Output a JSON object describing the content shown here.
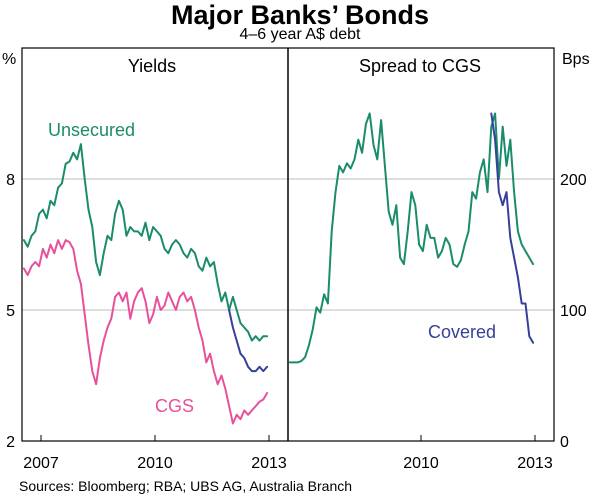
{
  "title": "Major Banks’ Bonds",
  "subtitle": "4–6 year A$ debt",
  "source": "Sources: Bloomberg; RBA; UBS AG, Australia Branch",
  "colors": {
    "green": "#1a8c6c",
    "pink": "#e8509b",
    "blue": "#34409a",
    "grid": "#bdbdbd"
  },
  "chart_data": [
    {
      "type": "line",
      "panel_title": "Yields",
      "ylabel": "%",
      "ylim": [
        2,
        11
      ],
      "yticks": [
        2,
        5,
        8
      ],
      "xlim": [
        2006.5,
        2013.5
      ],
      "xticks": [
        2007,
        2010,
        2013
      ],
      "grid": true,
      "series": [
        {
          "name": "Unsecured",
          "color": "#1a8c6c",
          "x": [
            2006.55,
            2006.65,
            2006.75,
            2006.85,
            2006.95,
            2007.05,
            2007.15,
            2007.25,
            2007.35,
            2007.45,
            2007.55,
            2007.65,
            2007.75,
            2007.85,
            2007.95,
            2008.05,
            2008.15,
            2008.25,
            2008.35,
            2008.45,
            2008.55,
            2008.65,
            2008.75,
            2008.85,
            2008.95,
            2009.05,
            2009.15,
            2009.25,
            2009.35,
            2009.45,
            2009.55,
            2009.65,
            2009.75,
            2009.85,
            2009.95,
            2010.05,
            2010.15,
            2010.25,
            2010.35,
            2010.45,
            2010.55,
            2010.65,
            2010.75,
            2010.85,
            2010.95,
            2011.05,
            2011.15,
            2011.25,
            2011.35,
            2011.45,
            2011.55,
            2011.65,
            2011.75,
            2011.85,
            2011.95,
            2012.05,
            2012.15,
            2012.25,
            2012.35,
            2012.45,
            2012.55,
            2012.65,
            2012.75,
            2012.85,
            2012.95
          ],
          "values": [
            6.6,
            6.45,
            6.7,
            6.8,
            7.2,
            7.3,
            7.1,
            7.5,
            7.4,
            7.8,
            7.9,
            8.35,
            8.4,
            8.6,
            8.45,
            8.8,
            8.0,
            7.3,
            6.9,
            6.1,
            5.8,
            6.3,
            6.7,
            6.6,
            7.2,
            7.5,
            7.3,
            6.7,
            6.9,
            6.8,
            6.8,
            6.7,
            7.0,
            6.6,
            6.9,
            6.8,
            6.7,
            6.4,
            6.3,
            6.5,
            6.6,
            6.5,
            6.3,
            6.2,
            6.4,
            6.3,
            6.0,
            5.9,
            6.2,
            6.0,
            6.1,
            5.6,
            5.2,
            5.4,
            5.0,
            5.3,
            5.0,
            4.7,
            4.6,
            4.5,
            4.3,
            4.4,
            4.3,
            4.4,
            4.4
          ]
        },
        {
          "name": "CGS",
          "color": "#e8509b",
          "x": [
            2006.55,
            2006.65,
            2006.75,
            2006.85,
            2006.95,
            2007.05,
            2007.15,
            2007.25,
            2007.35,
            2007.45,
            2007.55,
            2007.65,
            2007.75,
            2007.85,
            2007.95,
            2008.05,
            2008.15,
            2008.25,
            2008.35,
            2008.45,
            2008.55,
            2008.65,
            2008.75,
            2008.85,
            2008.95,
            2009.05,
            2009.15,
            2009.25,
            2009.35,
            2009.45,
            2009.55,
            2009.65,
            2009.75,
            2009.85,
            2009.95,
            2010.05,
            2010.15,
            2010.25,
            2010.35,
            2010.45,
            2010.55,
            2010.65,
            2010.75,
            2010.85,
            2010.95,
            2011.05,
            2011.15,
            2011.25,
            2011.35,
            2011.45,
            2011.55,
            2011.65,
            2011.75,
            2011.85,
            2011.95,
            2012.05,
            2012.15,
            2012.25,
            2012.35,
            2012.45,
            2012.55,
            2012.65,
            2012.75,
            2012.85,
            2012.95
          ],
          "values": [
            5.95,
            5.8,
            6.0,
            6.1,
            6.0,
            6.4,
            6.2,
            6.5,
            6.3,
            6.6,
            6.4,
            6.6,
            6.55,
            6.4,
            5.9,
            5.6,
            4.9,
            4.2,
            3.6,
            3.3,
            3.9,
            4.3,
            4.6,
            4.8,
            5.3,
            5.4,
            5.2,
            5.4,
            4.8,
            5.2,
            5.4,
            5.5,
            5.2,
            4.7,
            4.9,
            5.3,
            5.0,
            5.1,
            5.4,
            5.2,
            5.0,
            5.3,
            5.4,
            5.2,
            5.3,
            5.0,
            4.6,
            4.3,
            3.8,
            4.0,
            3.6,
            3.3,
            3.5,
            3.2,
            2.8,
            2.4,
            2.6,
            2.5,
            2.7,
            2.6,
            2.7,
            2.8,
            2.9,
            2.95,
            3.1
          ]
        },
        {
          "name": "Covered",
          "color": "#34409a",
          "x": [
            2011.95,
            2012.05,
            2012.15,
            2012.25,
            2012.35,
            2012.45,
            2012.55,
            2012.65,
            2012.75,
            2012.85,
            2012.95
          ],
          "values": [
            5.0,
            4.6,
            4.3,
            4.0,
            3.9,
            3.7,
            3.6,
            3.6,
            3.7,
            3.6,
            3.7
          ]
        }
      ]
    },
    {
      "type": "line",
      "panel_title": "Spread to CGS",
      "ylabel": "Bps",
      "ylim": [
        0,
        300
      ],
      "yticks": [
        0,
        100,
        200
      ],
      "xlim": [
        2006.5,
        2013.5
      ],
      "xticks": [
        2010,
        2013
      ],
      "grid": true,
      "series": [
        {
          "name": "",
          "color": "#1a8c6c",
          "x": [
            2006.55,
            2006.65,
            2006.75,
            2006.85,
            2006.95,
            2007.05,
            2007.15,
            2007.25,
            2007.35,
            2007.45,
            2007.55,
            2007.65,
            2007.75,
            2007.85,
            2007.95,
            2008.05,
            2008.15,
            2008.25,
            2008.35,
            2008.45,
            2008.55,
            2008.65,
            2008.75,
            2008.85,
            2008.95,
            2009.05,
            2009.15,
            2009.25,
            2009.35,
            2009.45,
            2009.55,
            2009.65,
            2009.75,
            2009.85,
            2009.95,
            2010.05,
            2010.15,
            2010.25,
            2010.35,
            2010.45,
            2010.55,
            2010.65,
            2010.75,
            2010.85,
            2010.95,
            2011.05,
            2011.15,
            2011.25,
            2011.35,
            2011.45,
            2011.55,
            2011.65,
            2011.75,
            2011.85,
            2011.95,
            2012.05,
            2012.15,
            2012.25,
            2012.35,
            2012.45,
            2012.55,
            2012.65,
            2012.75,
            2012.85,
            2012.95
          ],
          "values": [
            60,
            60,
            60,
            61,
            64,
            73,
            85,
            102,
            98,
            112,
            105,
            160,
            190,
            210,
            205,
            212,
            208,
            215,
            230,
            220,
            242,
            250,
            226,
            215,
            245,
            210,
            175,
            165,
            180,
            140,
            135,
            160,
            190,
            180,
            150,
            145,
            165,
            155,
            155,
            140,
            145,
            155,
            150,
            135,
            133,
            138,
            150,
            160,
            190,
            185,
            205,
            215,
            190,
            240,
            250,
            200,
            240,
            210,
            230,
            190,
            160,
            150,
            145,
            140,
            135
          ]
        },
        {
          "name": "Covered",
          "color": "#34409a",
          "x": [
            2011.85,
            2011.95,
            2012.05,
            2012.15,
            2012.25,
            2012.35,
            2012.45,
            2012.55,
            2012.65,
            2012.75,
            2012.85,
            2012.95
          ],
          "values": [
            250,
            230,
            190,
            180,
            190,
            155,
            140,
            125,
            105,
            105,
            80,
            75
          ]
        }
      ]
    }
  ]
}
